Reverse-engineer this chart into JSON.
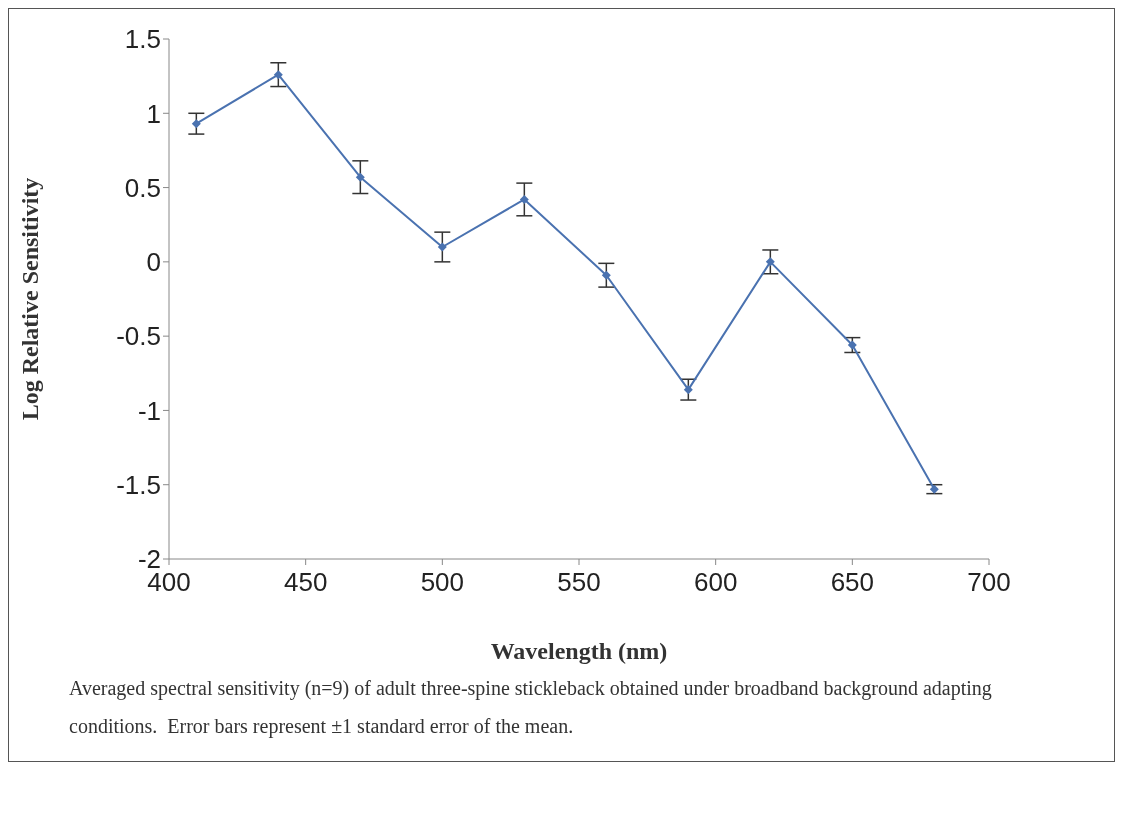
{
  "chart_data": {
    "type": "line",
    "xlabel": "Wavelength (nm)",
    "ylabel": "Log Relative Sensitivity",
    "x": [
      410,
      440,
      470,
      500,
      530,
      560,
      590,
      620,
      650,
      680
    ],
    "series": [
      {
        "color": "#4a72b0",
        "values": [
          0.93,
          1.26,
          0.57,
          0.1,
          0.42,
          -0.09,
          -0.86,
          0.0,
          -0.56,
          -1.53
        ],
        "errors": [
          0.07,
          0.08,
          0.11,
          0.1,
          0.11,
          0.08,
          0.07,
          0.08,
          0.05,
          0.03
        ]
      }
    ],
    "xlim": [
      400,
      700
    ],
    "xticks": [
      400,
      450,
      500,
      550,
      600,
      650,
      700
    ],
    "ylim": [
      -2,
      1.5
    ],
    "yticks": [
      -2,
      -1.5,
      -1,
      -0.5,
      0,
      0.5,
      1,
      1.5
    ],
    "grid": false,
    "legend": false,
    "marker": "diamond",
    "line_style": "solid",
    "annotations": [
      "Averaged spectral sensitivity (n=9) of adult three-spine stickleback obtained under broadband background adapting conditions.  Error bars represent ±1 standard error of the mean."
    ]
  }
}
